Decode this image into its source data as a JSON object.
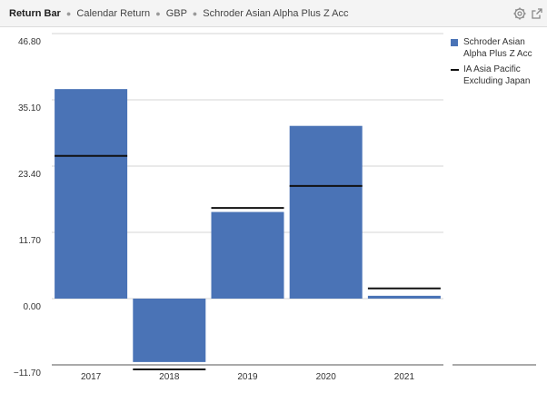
{
  "header": {
    "title": "Return Bar",
    "subtitle_parts": [
      "Calendar Return",
      "GBP",
      "Schroder Asian Alpha Plus Z Acc"
    ],
    "separator": "●",
    "icons": [
      "gear-icon",
      "popout-icon"
    ]
  },
  "colors": {
    "fund_bar": "#4a73b6",
    "benchmark_line": "#111111",
    "grid": "#d4d4d4",
    "axis": "#555555"
  },
  "chart_data": {
    "type": "bar",
    "title": "",
    "categories": [
      "2017",
      "2018",
      "2019",
      "2020",
      "2021"
    ],
    "series": [
      {
        "name": "Schroder Asian Alpha Plus Z Acc",
        "kind": "bar",
        "values": [
          37.0,
          -11.2,
          15.3,
          30.5,
          0.5
        ]
      },
      {
        "name": "IA Asia Pacific Excluding Japan",
        "kind": "line-marker",
        "values": [
          25.2,
          -12.5,
          16.0,
          19.9,
          1.8
        ]
      }
    ],
    "y_ticks": [
      "46.80",
      "35.10",
      "23.40",
      "11.70",
      "0.00",
      "−11.70"
    ],
    "ylim": [
      -11.7,
      46.8
    ],
    "grid": true,
    "legend": {
      "position": "right",
      "entries": [
        {
          "label_lines": [
            "Schroder Asian",
            "Alpha Plus Z Acc"
          ],
          "swatch": "box"
        },
        {
          "label_lines": [
            "IA Asia Pacific",
            "Excluding Japan"
          ],
          "swatch": "line"
        }
      ]
    }
  }
}
